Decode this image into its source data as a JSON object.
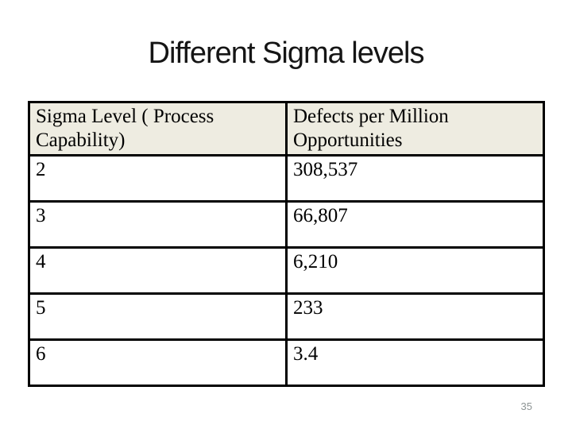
{
  "slide": {
    "title": "Different Sigma levels",
    "page_number": "35"
  },
  "table": {
    "headers": [
      "Sigma Level ( Process Capability)",
      "Defects per Million Opportunities"
    ],
    "rows": [
      [
        "2",
        "308,537"
      ],
      [
        "3",
        "66,807"
      ],
      [
        "4",
        "6,210"
      ],
      [
        "5",
        "233"
      ],
      [
        "6",
        "3.4"
      ]
    ]
  },
  "colors": {
    "header_fill": "#EEECE1",
    "table_border": "#000000",
    "title_text": "#151515",
    "page_number_text": "#8D9494",
    "background": "#FFFFFF"
  }
}
